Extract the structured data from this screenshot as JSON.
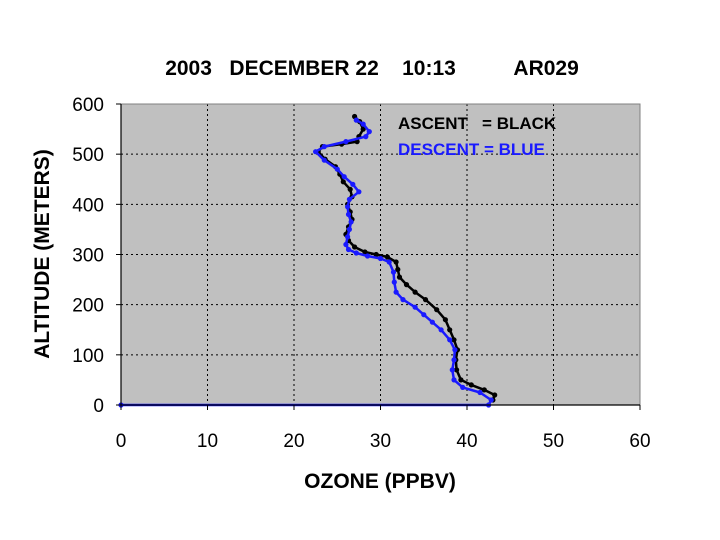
{
  "chart_data": {
    "type": "line",
    "title": "2003   DECEMBER 22    10:13          AR029",
    "xlabel": "OZONE (PPBV)",
    "ylabel": "ALTITUDE (METERS)",
    "xlim": [
      0,
      60
    ],
    "ylim": [
      0,
      600
    ],
    "xticks": [
      0,
      10,
      20,
      30,
      40,
      50,
      60
    ],
    "yticks": [
      0,
      100,
      200,
      300,
      400,
      500,
      600
    ],
    "grid": true,
    "plot_background": "#c0c0c0",
    "annotations": [
      {
        "text": "ASCENT   = BLACK",
        "color": "#000000"
      },
      {
        "text": "DESCENT = BLUE",
        "color": "#1a1aff"
      }
    ],
    "series": [
      {
        "color": "#000000",
        "points": [
          [
            43.0,
            10
          ],
          [
            43.2,
            20
          ],
          [
            42.0,
            30
          ],
          [
            40.5,
            40
          ],
          [
            39.3,
            50
          ],
          [
            38.8,
            70
          ],
          [
            38.7,
            90
          ],
          [
            38.9,
            110
          ],
          [
            38.5,
            130
          ],
          [
            38.0,
            150
          ],
          [
            37.5,
            170
          ],
          [
            36.5,
            190
          ],
          [
            35.2,
            210
          ],
          [
            34.0,
            225
          ],
          [
            33.0,
            240
          ],
          [
            32.2,
            255
          ],
          [
            32.0,
            270
          ],
          [
            31.8,
            285
          ],
          [
            30.8,
            295
          ],
          [
            29.5,
            300
          ],
          [
            28.2,
            305
          ],
          [
            27.0,
            315
          ],
          [
            26.3,
            328
          ],
          [
            26.0,
            340
          ],
          [
            26.3,
            355
          ],
          [
            26.7,
            370
          ],
          [
            26.5,
            385
          ],
          [
            26.2,
            400
          ],
          [
            26.7,
            415
          ],
          [
            26.5,
            430
          ],
          [
            25.7,
            445
          ],
          [
            25.3,
            460
          ],
          [
            24.8,
            475
          ],
          [
            23.6,
            490
          ],
          [
            22.8,
            505
          ],
          [
            23.3,
            515
          ],
          [
            25.5,
            520
          ],
          [
            27.3,
            525
          ],
          [
            27.5,
            535
          ],
          [
            28.0,
            550
          ],
          [
            27.6,
            565
          ],
          [
            27.0,
            575
          ]
        ]
      },
      {
        "color": "#1a1aff",
        "points": [
          [
            0,
            0
          ],
          [
            42.5,
            0
          ],
          [
            42.8,
            10
          ],
          [
            41.5,
            25
          ],
          [
            39.5,
            35
          ],
          [
            38.5,
            50
          ],
          [
            38.3,
            70
          ],
          [
            38.5,
            90
          ],
          [
            38.6,
            110
          ],
          [
            38.0,
            130
          ],
          [
            37.0,
            150
          ],
          [
            36.0,
            165
          ],
          [
            35.0,
            180
          ],
          [
            34.0,
            195
          ],
          [
            32.6,
            210
          ],
          [
            31.8,
            225
          ],
          [
            31.6,
            245
          ],
          [
            31.5,
            265
          ],
          [
            31.0,
            285
          ],
          [
            30.0,
            292
          ],
          [
            28.5,
            297
          ],
          [
            27.2,
            303
          ],
          [
            26.3,
            310
          ],
          [
            26.0,
            320
          ],
          [
            26.2,
            335
          ],
          [
            26.4,
            350
          ],
          [
            26.6,
            365
          ],
          [
            26.3,
            380
          ],
          [
            26.2,
            395
          ],
          [
            26.4,
            410
          ],
          [
            27.5,
            425
          ],
          [
            26.8,
            440
          ],
          [
            25.8,
            455
          ],
          [
            25.0,
            470
          ],
          [
            23.5,
            488
          ],
          [
            22.5,
            505
          ],
          [
            23.5,
            515
          ],
          [
            26.0,
            525
          ],
          [
            28.3,
            535
          ],
          [
            28.7,
            545
          ],
          [
            28.0,
            560
          ],
          [
            27.2,
            568
          ]
        ]
      }
    ]
  }
}
